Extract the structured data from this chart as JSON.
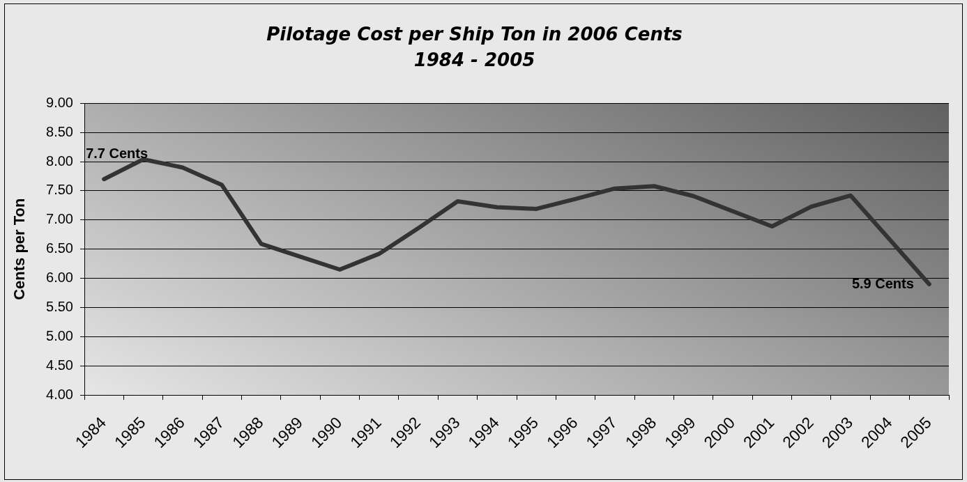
{
  "chart_data": {
    "type": "line",
    "title": "Pilotage Cost per Ship Ton in 2006 Cents",
    "subtitle": "1984 - 2005",
    "ylabel": "Cents per Ton",
    "categories": [
      "1984",
      "1985",
      "1986",
      "1987",
      "1988",
      "1989",
      "1990",
      "1991",
      "1992",
      "1993",
      "1994",
      "1995",
      "1996",
      "1997",
      "1998",
      "1999",
      "2000",
      "2001",
      "2002",
      "2003",
      "2004",
      "2005"
    ],
    "values": [
      7.7,
      8.04,
      7.9,
      7.6,
      6.59,
      6.37,
      6.15,
      6.42,
      6.86,
      7.32,
      7.22,
      7.19,
      7.36,
      7.54,
      7.58,
      7.41,
      7.15,
      6.89,
      7.23,
      7.42,
      6.66,
      5.9
    ],
    "color": "#333333",
    "value_labels": [
      "7.7 Cents",
      null,
      null,
      null,
      null,
      null,
      null,
      null,
      null,
      null,
      null,
      null,
      null,
      null,
      null,
      null,
      null,
      null,
      null,
      null,
      null,
      "5.9 Cents"
    ],
    "ylim": [
      4,
      9
    ],
    "yticks": [
      {
        "value": 4,
        "label": "4.00"
      },
      {
        "value": 4.5,
        "label": "4.50"
      },
      {
        "value": 5,
        "label": "5.00"
      },
      {
        "value": 5.5,
        "label": "5.50"
      },
      {
        "value": 6,
        "label": "6.00"
      },
      {
        "value": 6.5,
        "label": "6.50"
      },
      {
        "value": 7,
        "label": "7.00"
      },
      {
        "value": 7.5,
        "label": "7.50"
      },
      {
        "value": 8,
        "label": "8.00"
      },
      {
        "value": 8.5,
        "label": "8.50"
      },
      {
        "value": 9,
        "label": "9.00"
      }
    ],
    "grid": "y",
    "marker": "none"
  }
}
